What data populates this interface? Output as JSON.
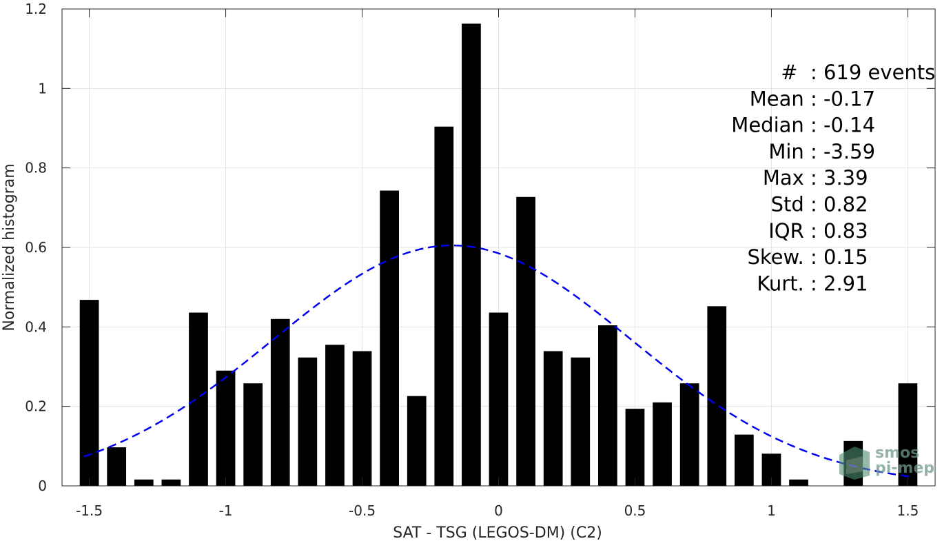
{
  "chart_data": {
    "type": "bar",
    "xlabel": "SAT - TSG (LEGOS-DM) (C2)",
    "ylabel": "Normalized histogram",
    "xlim": [
      -1.6,
      1.6
    ],
    "ylim": [
      0,
      1.2
    ],
    "xticks": [
      -1.5,
      -1,
      -0.5,
      0,
      0.5,
      1,
      1.5
    ],
    "xtick_labels": [
      "-1.5",
      "-1",
      "-0.5",
      "0",
      "0.5",
      "1",
      "1.5"
    ],
    "yticks": [
      0,
      0.2,
      0.4,
      0.6,
      0.8,
      1,
      1.2
    ],
    "ytick_labels": [
      "0",
      "0.2",
      "0.4",
      "0.6",
      "0.8",
      "1",
      "1.2"
    ],
    "grid": true,
    "bar_width": 0.07,
    "bar_color": "#000000",
    "bars": {
      "x": [
        -1.5,
        -1.4,
        -1.3,
        -1.2,
        -1.1,
        -1.0,
        -0.9,
        -0.8,
        -0.7,
        -0.6,
        -0.5,
        -0.4,
        -0.3,
        -0.2,
        -0.1,
        0.0,
        0.1,
        0.2,
        0.3,
        0.4,
        0.5,
        0.6,
        0.7,
        0.8,
        0.9,
        1.0,
        1.1,
        1.2,
        1.3,
        1.5
      ],
      "values": [
        0.468,
        0.097,
        0.016,
        0.016,
        0.436,
        0.29,
        0.258,
        0.42,
        0.323,
        0.355,
        0.339,
        0.743,
        0.226,
        0.904,
        1.163,
        0.436,
        0.727,
        0.339,
        0.323,
        0.404,
        0.194,
        0.21,
        0.258,
        0.452,
        0.129,
        0.081,
        0.016,
        0.0,
        0.113,
        0.258
      ]
    },
    "fit": {
      "type": "gaussian",
      "mean": -0.17,
      "std": 0.658,
      "peak": 0.605,
      "x_range": [
        -1.52,
        1.52
      ],
      "color": "#0000ee",
      "style": "dashed"
    },
    "annotations": [
      {
        "label": "#  ",
        "value": ": 619 events"
      },
      {
        "label": "Mean ",
        "value": ": -0.17"
      },
      {
        "label": "Median ",
        "value": ": -0.14"
      },
      {
        "label": "Min ",
        "value": ": -3.59"
      },
      {
        "label": "Max ",
        "value": ": 3.39"
      },
      {
        "label": "Std ",
        "value": ": 0.82"
      },
      {
        "label": "IQR ",
        "value": ": 0.83"
      },
      {
        "label": "Skew. ",
        "value": ": 0.15"
      },
      {
        "label": "Kurt. ",
        "value": ": 2.91"
      }
    ]
  },
  "watermark": {
    "line1": "smos",
    "line2": "pi-mep",
    "icon": "smos-pi-mep-logo-icon"
  }
}
